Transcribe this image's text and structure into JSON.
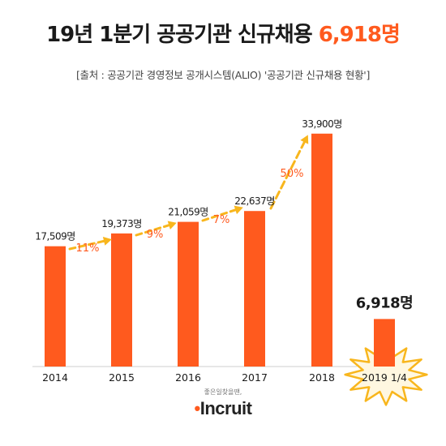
{
  "header": {
    "title_main": "19년 1분기 공공기관 신규채용",
    "title_highlight": "6,918명",
    "source": "[출처 : 공공기관 경영정보 공개시스템(ALIO) '공공기관 신규채용 현황']"
  },
  "chart_data": {
    "type": "bar",
    "categories": [
      "2014",
      "2015",
      "2016",
      "2017",
      "2018",
      "2019 1/4"
    ],
    "values": [
      17509,
      19373,
      21059,
      22637,
      33900,
      6918
    ],
    "value_labels": [
      "17,509명",
      "19,373명",
      "21,059명",
      "22,637명",
      "33,900명",
      "6,918명"
    ],
    "growth_labels": [
      "11%",
      "9%",
      "7%",
      "50%"
    ],
    "ylim": [
      0,
      36000
    ],
    "xlabel": "",
    "ylabel": "",
    "grid": false,
    "colors": {
      "bar": "#ff5a1e",
      "arrow": "#f8b61d",
      "growth_text": "#ff5a1e",
      "burst": "#f8b61d"
    }
  },
  "logo": {
    "tagline": "좋은일찾을땐,",
    "brand": "Incruit"
  }
}
